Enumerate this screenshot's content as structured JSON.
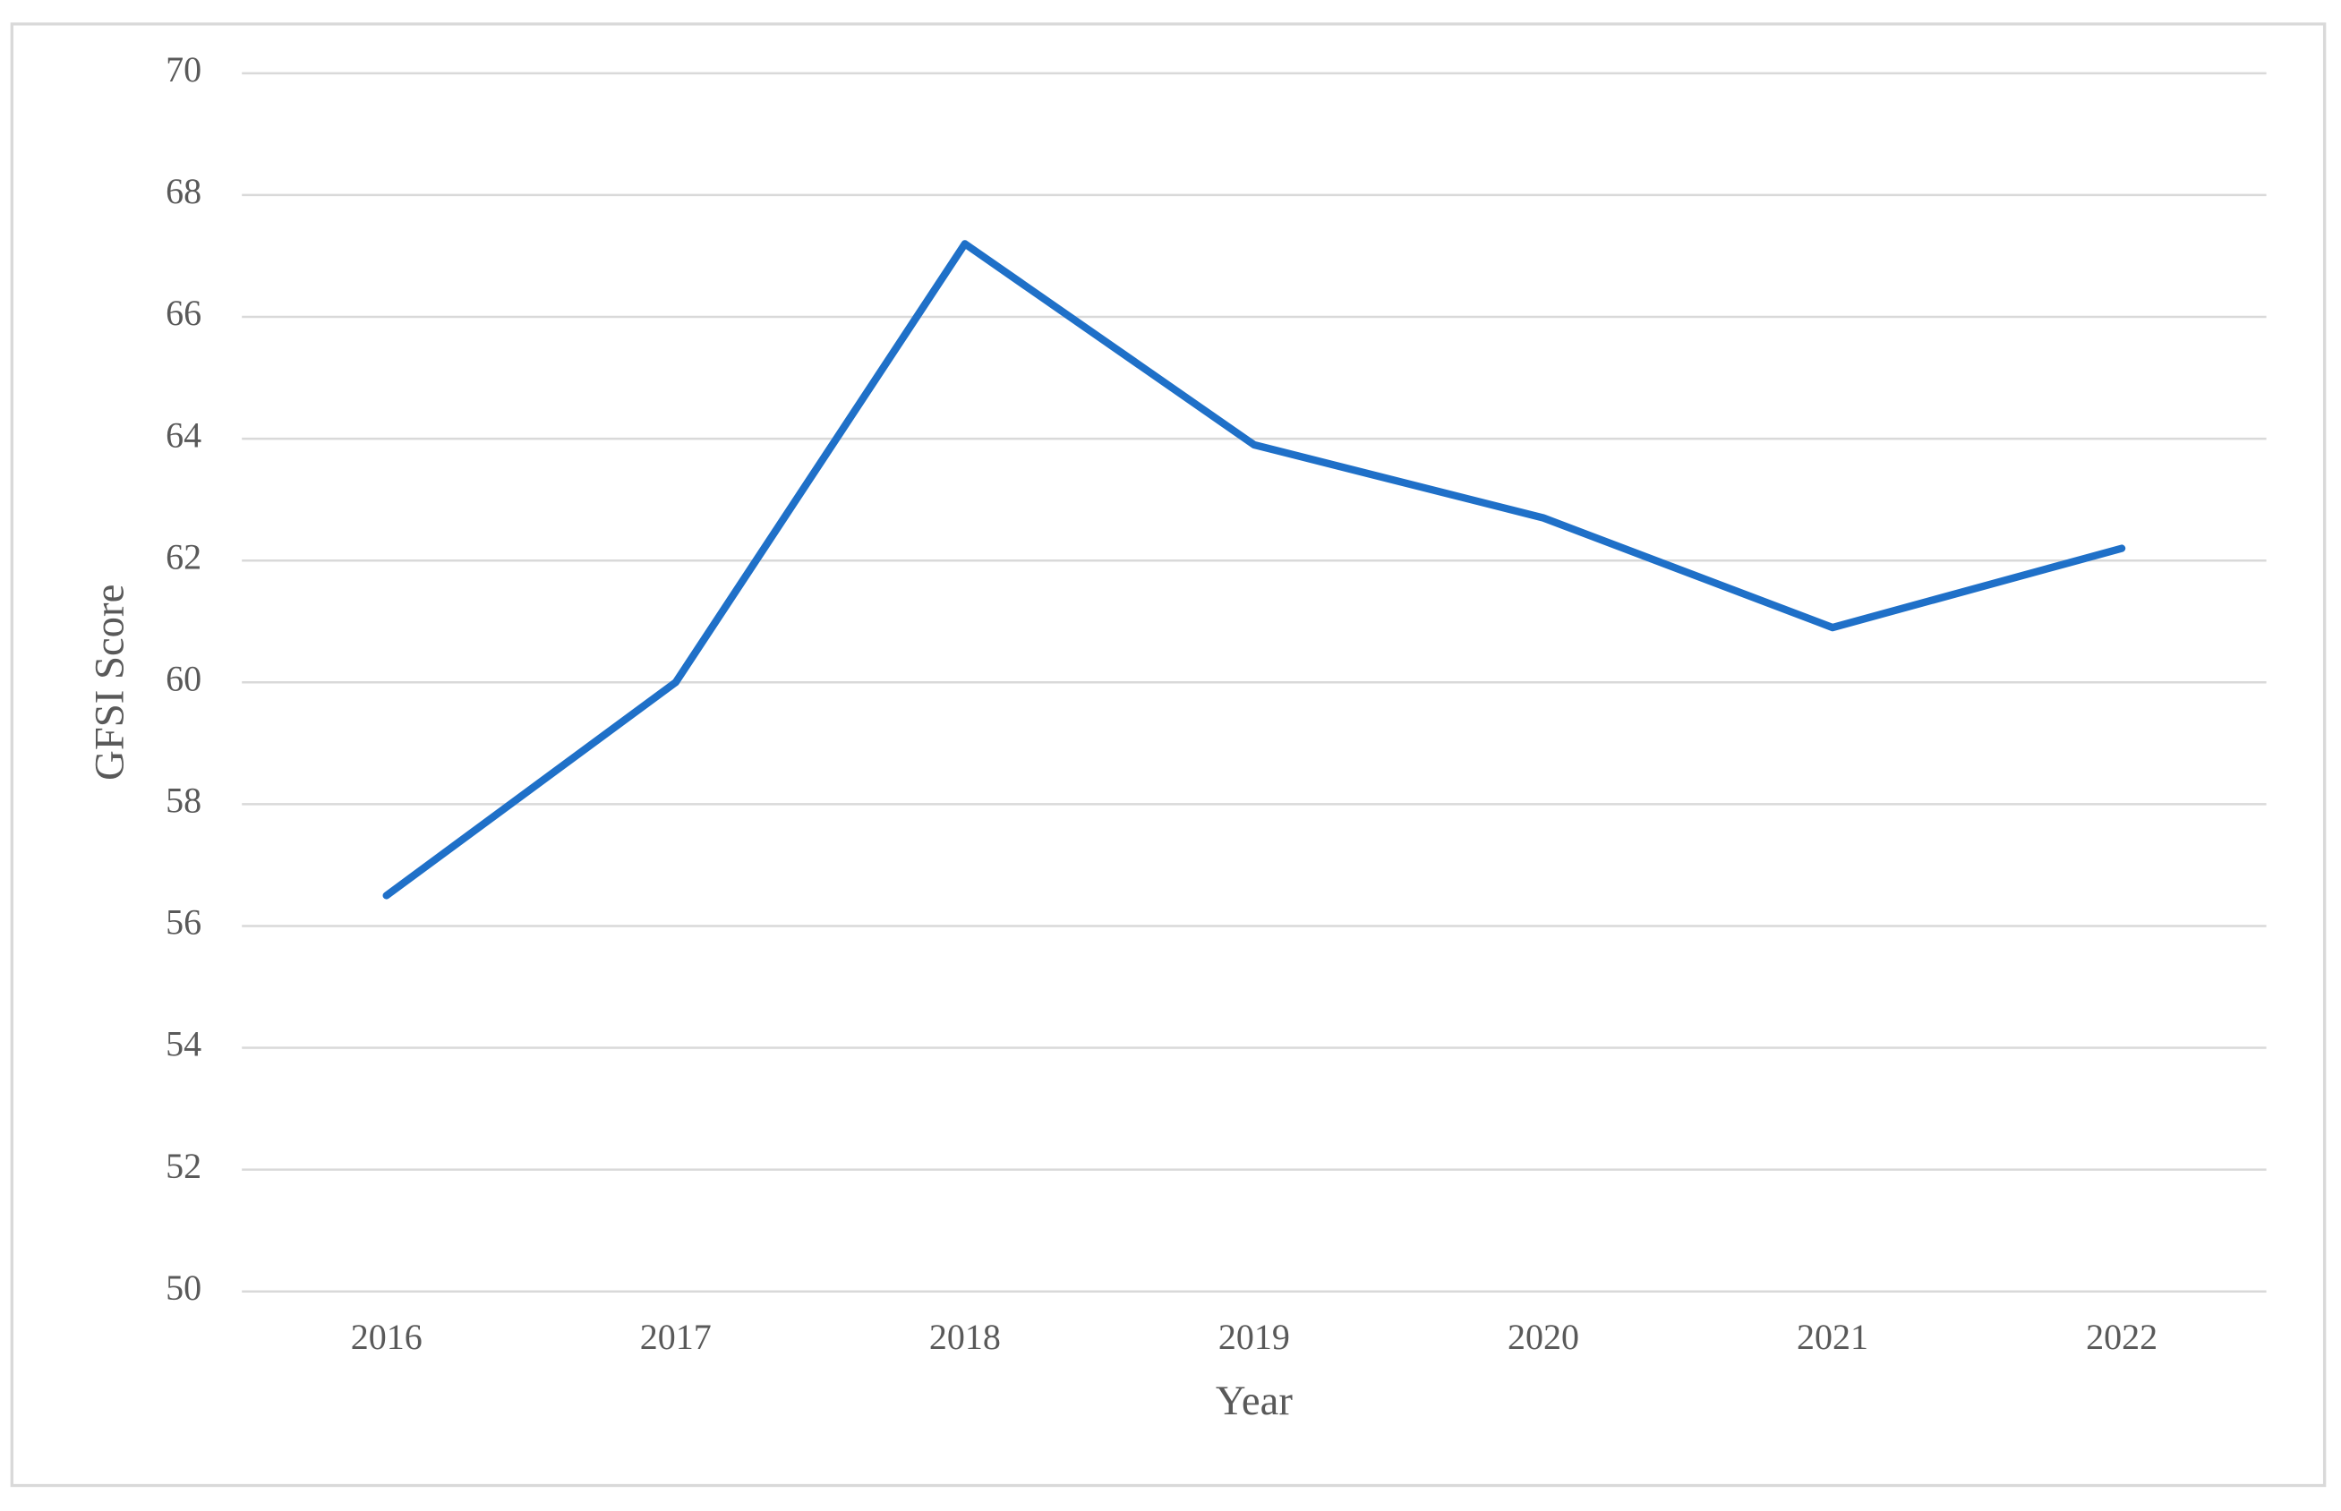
{
  "chart_data": {
    "type": "line",
    "x_label": "Year",
    "y_label": "GFSI Score",
    "categories": [
      "2016",
      "2017",
      "2018",
      "2019",
      "2020",
      "2021",
      "2022"
    ],
    "series": [
      {
        "name": "GFSI Score",
        "color": "#1f70c8",
        "values": [
          56.5,
          60.0,
          67.2,
          63.9,
          62.7,
          60.9,
          62.2
        ]
      }
    ],
    "ylim": [
      50,
      70
    ],
    "yticks": [
      50,
      52,
      54,
      56,
      58,
      60,
      62,
      64,
      66,
      68,
      70
    ],
    "grid": true
  }
}
